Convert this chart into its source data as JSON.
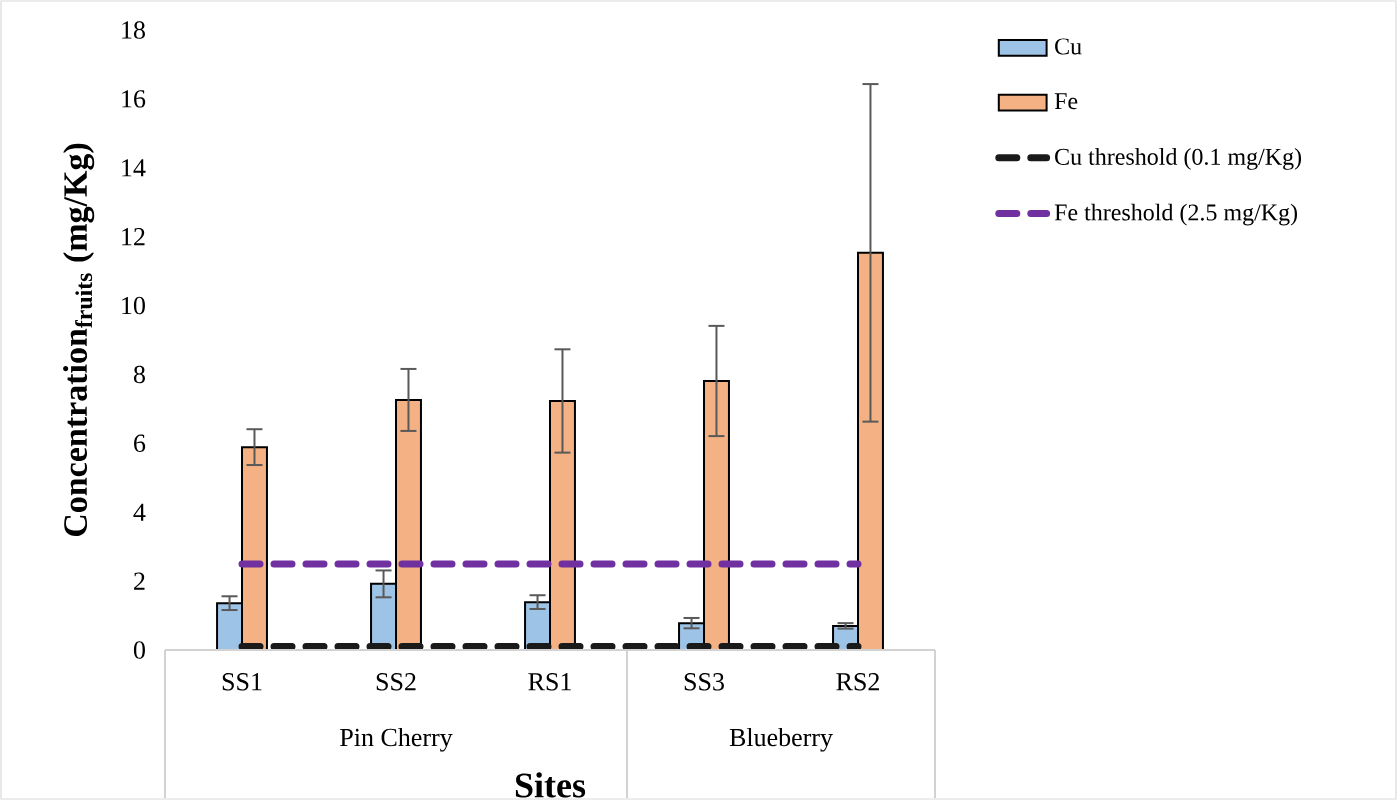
{
  "chart_data": {
    "type": "bar",
    "xlabel": "Sites",
    "ylabel": "Concentration$_{fruits}$ (mg/Kg)",
    "categories": [
      "SS1",
      "SS2",
      "RS1",
      "SS3",
      "RS2"
    ],
    "annotations": [
      "Pin Cherry",
      "Blueberry"
    ],
    "ylim": [
      0,
      18
    ],
    "yticks": [
      0,
      2,
      4,
      6,
      8,
      10,
      12,
      14,
      16,
      18
    ],
    "legend": "right",
    "grid": false,
    "series": [
      {
        "name": "Cu",
        "color": "#9dc3e6",
        "values": [
          1.36,
          1.92,
          1.39,
          0.78,
          0.7
        ],
        "errors": [
          0.2,
          0.39,
          0.2,
          0.15,
          0.08
        ]
      },
      {
        "name": "Fe",
        "color": "#f4b183",
        "values": [
          5.89,
          7.26,
          7.23,
          7.81,
          11.53
        ],
        "errors": [
          0.52,
          0.9,
          1.5,
          1.6,
          4.9
        ]
      },
      {
        "name": "Cu threshold (0.1 mg/Kg)",
        "type": "line",
        "line_style": "dashed",
        "marker": "none",
        "color": "#1a1a1a",
        "values": [
          0.1,
          0.1,
          0.1,
          0.1,
          0.1
        ]
      },
      {
        "name": "Fe threshold (2.5 mg/Kg)",
        "type": "line",
        "line_style": "dashed",
        "marker": "none",
        "color": "#7030a0",
        "values": [
          2.5,
          2.5,
          2.5,
          2.5,
          2.5
        ]
      }
    ]
  }
}
